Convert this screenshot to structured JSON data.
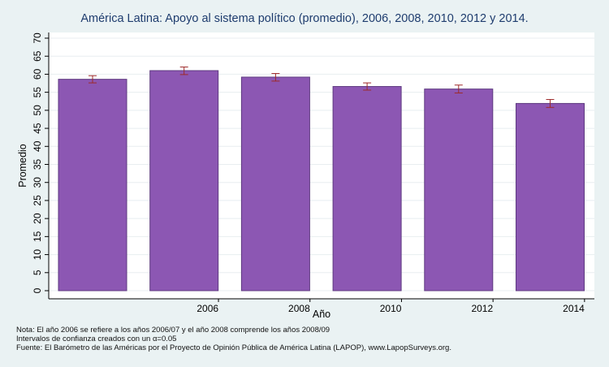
{
  "chart_data": {
    "type": "bar",
    "title": "América Latina: Apoyo al sistema político (promedio), 2006, 2008, 2010, 2012 y 2014.",
    "xlabel": "Año",
    "ylabel": "Promedio",
    "categories": [
      "",
      "2006",
      "2008",
      "2010",
      "2012",
      "2014"
    ],
    "values": [
      58.6,
      61.0,
      59.2,
      56.6,
      55.9,
      51.9
    ],
    "error_low": [
      57.6,
      59.9,
      58.1,
      55.6,
      54.8,
      50.8
    ],
    "error_high": [
      59.6,
      62.0,
      60.2,
      57.6,
      57.0,
      53.0
    ],
    "ylim": [
      0,
      70
    ],
    "yticks": [
      0,
      5,
      10,
      15,
      20,
      25,
      30,
      35,
      40,
      45,
      50,
      55,
      60,
      65,
      70
    ],
    "grid": true,
    "colors": {
      "bar": "#8c57b3",
      "bar_edge": "#5e3a80",
      "error_bar": "#9e2a2a",
      "plot_bg": "#ffffff",
      "page_bg": "#eaf2f3",
      "grid": "#e8eef0",
      "title": "#1e3c6e"
    }
  },
  "notes": {
    "line1": "Nota: El año 2006 se refiere a los años 2006/07 y el año 2008 comprende los años 2008/09",
    "line2": "Intervalos de confianza creados con un α=0.05",
    "line3": "Fuente: El Barómetro de las Américas por el Proyecto de Opinión Pública de América Latina (LAPOP), www.LapopSurveys.org."
  }
}
